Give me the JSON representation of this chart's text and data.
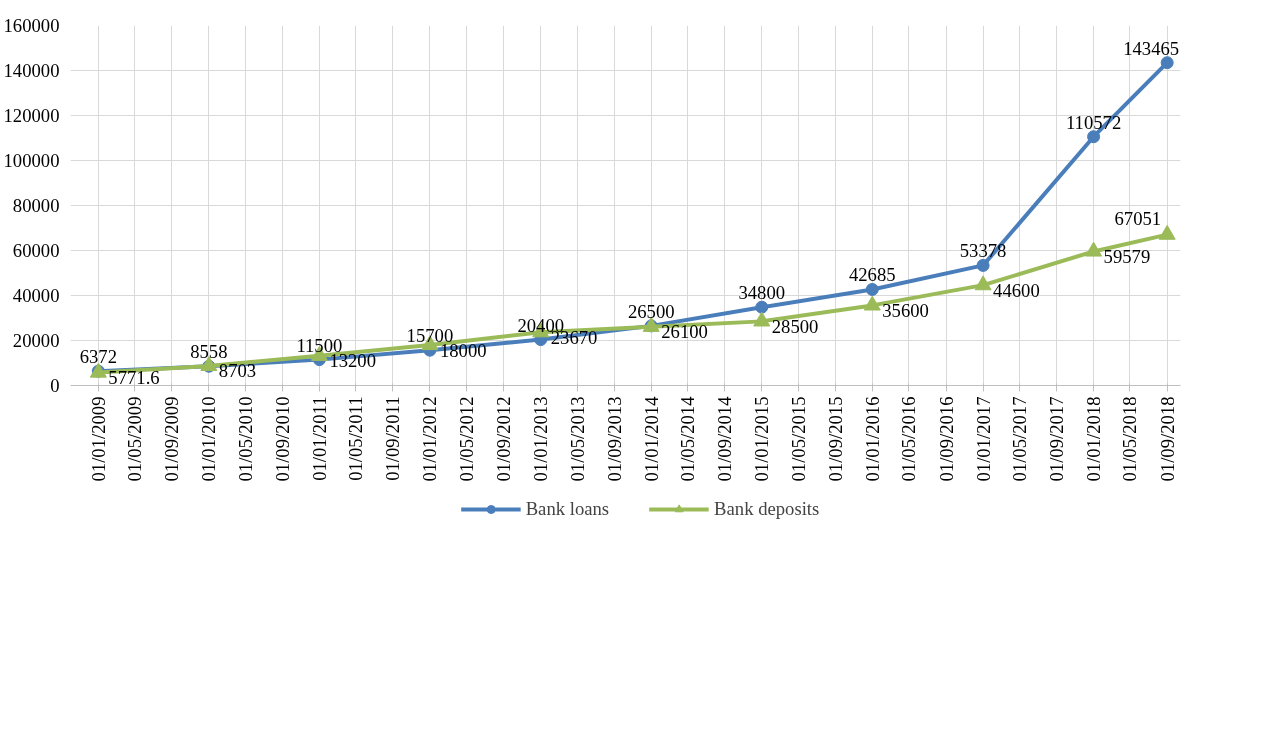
{
  "chart_data": {
    "type": "line",
    "x": [
      "2009-01-01",
      "2010-01-01",
      "2011-01-01",
      "2012-01-01",
      "2013-01-01",
      "2014-01-01",
      "2015-01-01",
      "2016-01-01",
      "2017-01-01",
      "2018-01-01",
      "2018-09-01"
    ],
    "series": [
      {
        "name": "Bank loans",
        "color": "#4a7ebb",
        "marker": "circle",
        "values": [
          6372,
          8558,
          11500,
          15700,
          20400,
          26500,
          34800,
          42685,
          53378,
          110572,
          143465
        ]
      },
      {
        "name": "Bank deposits",
        "color": "#9bbb59",
        "marker": "triangle",
        "values": [
          5771.6,
          8703,
          13200,
          18000,
          23670,
          26100,
          28500,
          35600,
          44600,
          59579,
          67051
        ]
      }
    ],
    "xlim": [
      "2008-10-01",
      "2018-10-15"
    ],
    "xticks": [
      {
        "value": "2009-01-01",
        "label": "01/01/2009"
      },
      {
        "value": "2009-05-01",
        "label": "01/05/2009"
      },
      {
        "value": "2009-09-01",
        "label": "01/09/2009"
      },
      {
        "value": "2010-01-01",
        "label": "01/01/2010"
      },
      {
        "value": "2010-05-01",
        "label": "01/05/2010"
      },
      {
        "value": "2010-09-01",
        "label": "01/09/2010"
      },
      {
        "value": "2011-01-01",
        "label": "01/01/2011"
      },
      {
        "value": "2011-05-01",
        "label": "01/05/2011"
      },
      {
        "value": "2011-09-01",
        "label": "01/09/2011"
      },
      {
        "value": "2012-01-01",
        "label": "01/01/2012"
      },
      {
        "value": "2012-05-01",
        "label": "01/05/2012"
      },
      {
        "value": "2012-09-01",
        "label": "01/09/2012"
      },
      {
        "value": "2013-01-01",
        "label": "01/01/2013"
      },
      {
        "value": "2013-05-01",
        "label": "01/05/2013"
      },
      {
        "value": "2013-09-01",
        "label": "01/09/2013"
      },
      {
        "value": "2014-01-01",
        "label": "01/01/2014"
      },
      {
        "value": "2014-05-01",
        "label": "01/05/2014"
      },
      {
        "value": "2014-09-01",
        "label": "01/09/2014"
      },
      {
        "value": "2015-01-01",
        "label": "01/01/2015"
      },
      {
        "value": "2015-05-01",
        "label": "01/05/2015"
      },
      {
        "value": "2015-09-01",
        "label": "01/09/2015"
      },
      {
        "value": "2016-01-01",
        "label": "01/01/2016"
      },
      {
        "value": "2016-05-01",
        "label": "01/05/2016"
      },
      {
        "value": "2016-09-01",
        "label": "01/09/2016"
      },
      {
        "value": "2017-01-01",
        "label": "01/01/2017"
      },
      {
        "value": "2017-05-01",
        "label": "01/05/2017"
      },
      {
        "value": "2017-09-01",
        "label": "01/09/2017"
      },
      {
        "value": "2018-01-01",
        "label": "01/01/2018"
      },
      {
        "value": "2018-05-01",
        "label": "01/05/2018"
      },
      {
        "value": "2018-09-01",
        "label": "01/09/2018"
      }
    ],
    "ylim": [
      0,
      160000
    ],
    "yticks": [
      0,
      20000,
      40000,
      60000,
      80000,
      100000,
      120000,
      140000,
      160000
    ],
    "grid": true,
    "legend": "bottom",
    "data_labels": true,
    "line_style": "solid"
  }
}
